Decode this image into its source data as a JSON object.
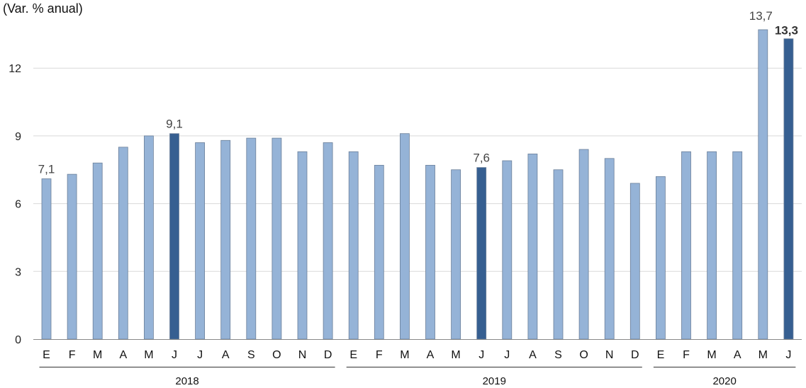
{
  "chart_data": {
    "type": "bar",
    "ylabel": "(Var. % anual)",
    "ylim": [
      0,
      14
    ],
    "yticks": [
      "0",
      "3",
      "6",
      "9",
      "12"
    ],
    "grid": true,
    "colors": {
      "normal": "#95b3d7",
      "highlight": "#365f91",
      "border": "#6b7f99",
      "grid": "#d9d9d9"
    },
    "groups": [
      {
        "year": "2018",
        "months": [
          "E",
          "F",
          "M",
          "A",
          "M",
          "J",
          "J",
          "A",
          "S",
          "O",
          "N",
          "D"
        ]
      },
      {
        "year": "2019",
        "months": [
          "E",
          "F",
          "M",
          "A",
          "M",
          "J",
          "J",
          "A",
          "S",
          "O",
          "N",
          "D"
        ]
      },
      {
        "year": "2020",
        "months": [
          "E",
          "F",
          "M",
          "A",
          "M",
          "J"
        ]
      }
    ],
    "values": [
      7.1,
      7.3,
      7.8,
      8.5,
      9.0,
      9.1,
      8.7,
      8.8,
      8.9,
      8.9,
      8.3,
      8.7,
      8.3,
      7.7,
      9.1,
      7.7,
      7.5,
      7.6,
      7.9,
      8.2,
      7.5,
      8.4,
      8.0,
      6.9,
      7.2,
      8.3,
      8.3,
      8.3,
      13.7,
      13.3
    ],
    "highlight": [
      5,
      17,
      29
    ],
    "data_labels": [
      {
        "index": 0,
        "text": "7,1",
        "bold": false
      },
      {
        "index": 5,
        "text": "9,1",
        "bold": false
      },
      {
        "index": 17,
        "text": "7,6",
        "bold": false
      },
      {
        "index": 28,
        "text": "13,7",
        "bold": false
      },
      {
        "index": 29,
        "text": "13,3",
        "bold": true
      }
    ]
  }
}
